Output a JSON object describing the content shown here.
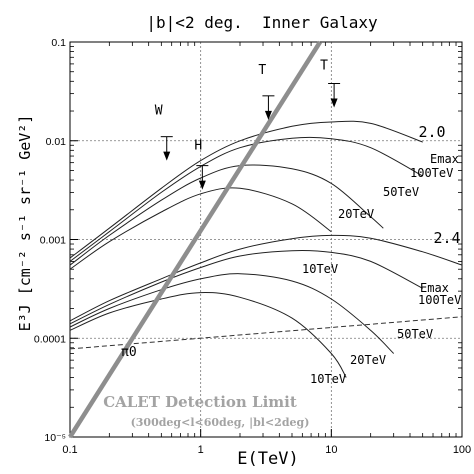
{
  "chart_data": {
    "type": "line",
    "title": "|b|<2 deg.  Inner Galaxy",
    "xlabel": "E(TeV)",
    "ylabel": "E³J [cm⁻² s⁻¹ sr⁻¹ GeV²]",
    "xscale": "log",
    "yscale": "log",
    "xlim": [
      0.1,
      100
    ],
    "ylim": [
      1e-05,
      0.1
    ],
    "grid": true,
    "x_tick_labels": [
      "0.1",
      "1",
      "10",
      "100"
    ],
    "x_tick_values": [
      0.1,
      1,
      10,
      100
    ],
    "y_tick_labels": [
      "10⁻⁵",
      "0.0001",
      "0.001",
      "0.01",
      "0.1"
    ],
    "y_tick_values": [
      1e-05,
      0.0001,
      0.001,
      0.01,
      0.1
    ],
    "calet_line": {
      "name": "CALET Detection Limit",
      "note": "(300deg<l<60deg, |bl<2deg)",
      "x": [
        0.1,
        8.2
      ],
      "y": [
        1e-05,
        0.1
      ]
    },
    "series_a": [
      {
        "label": "100TeV",
        "x": [
          0.1,
          0.2,
          0.5,
          1,
          2,
          5,
          10,
          20,
          50
        ],
        "y": [
          0.00065,
          0.0013,
          0.0033,
          0.0063,
          0.01,
          0.014,
          0.0155,
          0.015,
          0.0097
        ]
      },
      {
        "label": "50TeV",
        "x": [
          0.1,
          0.2,
          0.5,
          1,
          2,
          5,
          10,
          20,
          50
        ],
        "y": [
          0.0006,
          0.0012,
          0.003,
          0.0055,
          0.0085,
          0.0106,
          0.0105,
          0.0085,
          0.0044
        ]
      },
      {
        "label": "20TeV",
        "x": [
          0.1,
          0.2,
          0.5,
          1,
          2,
          5,
          10,
          20,
          25
        ],
        "y": [
          0.00055,
          0.0011,
          0.0025,
          0.0042,
          0.0056,
          0.0052,
          0.0037,
          0.0017,
          0.0013
        ]
      },
      {
        "label": "10TeV",
        "x": [
          0.1,
          0.2,
          0.5,
          1,
          2,
          5,
          10
        ],
        "y": [
          0.0005,
          0.00095,
          0.0019,
          0.0029,
          0.0033,
          0.0023,
          0.0012
        ]
      }
    ],
    "series_a_index": "2.0",
    "series_b": [
      {
        "label": "100TeV",
        "x": [
          0.1,
          0.2,
          0.5,
          1,
          2,
          5,
          10,
          20,
          50,
          100
        ],
        "y": [
          0.00015,
          0.00024,
          0.0004,
          0.00058,
          0.0008,
          0.00102,
          0.0011,
          0.00103,
          0.00075,
          0.00055
        ]
      },
      {
        "label": "50TeV",
        "x": [
          0.1,
          0.2,
          0.5,
          1,
          2,
          5,
          10,
          20,
          50
        ],
        "y": [
          0.00014,
          0.00022,
          0.00037,
          0.00052,
          0.00068,
          0.00077,
          0.00074,
          0.0006,
          0.00032
        ]
      },
      {
        "label": "20TeV",
        "x": [
          0.1,
          0.2,
          0.5,
          1,
          2,
          5,
          10,
          20,
          30
        ],
        "y": [
          0.00013,
          0.0002,
          0.00031,
          0.0004,
          0.00045,
          0.00038,
          0.00025,
          0.00012,
          7e-05
        ]
      },
      {
        "label": "10TeV",
        "x": [
          0.1,
          0.2,
          0.5,
          1,
          2,
          5,
          10,
          13
        ],
        "y": [
          0.00012,
          0.00018,
          0.00025,
          0.00029,
          0.00026,
          0.00016,
          7e-05,
          4e-05
        ]
      }
    ],
    "series_b_index": "2.4",
    "emax_label": "Emax",
    "pi0_line": {
      "label": "π0",
      "x": [
        0.1,
        100
      ],
      "y": [
        7.8e-05,
        0.000165
      ]
    },
    "upper_limits": [
      {
        "label": "W",
        "x": 0.55,
        "y": 0.011
      },
      {
        "label": "H",
        "x": 1.03,
        "y": 0.0056
      },
      {
        "label": "T",
        "x": 3.3,
        "y": 0.0285
      },
      {
        "label": "T",
        "x": 10.5,
        "y": 0.038
      }
    ]
  }
}
